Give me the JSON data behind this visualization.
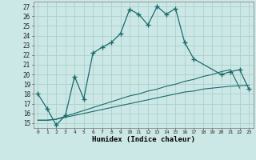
{
  "xlabel": "Humidex (Indice chaleur)",
  "bg_color": "#cce8e6",
  "grid_color": "#aacfcc",
  "line_color": "#1a6b6b",
  "xlim": [
    -0.5,
    23.5
  ],
  "ylim": [
    14.5,
    27.5
  ],
  "xticks": [
    0,
    1,
    2,
    3,
    4,
    5,
    6,
    7,
    8,
    9,
    10,
    11,
    12,
    13,
    14,
    15,
    16,
    17,
    18,
    19,
    20,
    21,
    22,
    23
  ],
  "yticks": [
    15,
    16,
    17,
    18,
    19,
    20,
    21,
    22,
    23,
    24,
    25,
    26,
    27
  ],
  "line1_x": [
    0,
    1,
    2,
    3,
    4,
    5,
    6,
    7,
    8,
    9,
    10,
    11,
    12,
    13,
    14,
    15,
    16,
    17,
    20,
    21,
    22,
    23
  ],
  "line1_y": [
    18.0,
    16.5,
    14.8,
    15.8,
    19.8,
    17.5,
    22.2,
    22.8,
    23.3,
    24.2,
    26.7,
    26.2,
    25.1,
    27.0,
    26.2,
    26.8,
    23.3,
    21.6,
    20.0,
    20.3,
    20.5,
    18.5
  ],
  "line2_x": [
    0,
    1,
    2,
    3,
    4,
    5,
    6,
    7,
    8,
    9,
    10,
    11,
    12,
    13,
    14,
    15,
    16,
    17,
    18,
    19,
    20,
    21,
    22,
    23
  ],
  "line2_y": [
    15.3,
    15.3,
    15.4,
    15.6,
    15.8,
    16.0,
    16.2,
    16.4,
    16.6,
    16.8,
    17.0,
    17.2,
    17.4,
    17.6,
    17.8,
    18.0,
    18.2,
    18.3,
    18.5,
    18.6,
    18.7,
    18.8,
    18.85,
    18.9
  ],
  "line3_x": [
    0,
    1,
    2,
    3,
    4,
    5,
    6,
    7,
    8,
    9,
    10,
    11,
    12,
    13,
    14,
    15,
    16,
    17,
    18,
    19,
    20,
    21,
    22
  ],
  "line3_y": [
    15.3,
    15.3,
    15.4,
    15.7,
    16.0,
    16.3,
    16.6,
    16.9,
    17.2,
    17.5,
    17.8,
    18.0,
    18.3,
    18.5,
    18.8,
    19.0,
    19.3,
    19.5,
    19.8,
    20.0,
    20.3,
    20.5,
    18.6
  ]
}
